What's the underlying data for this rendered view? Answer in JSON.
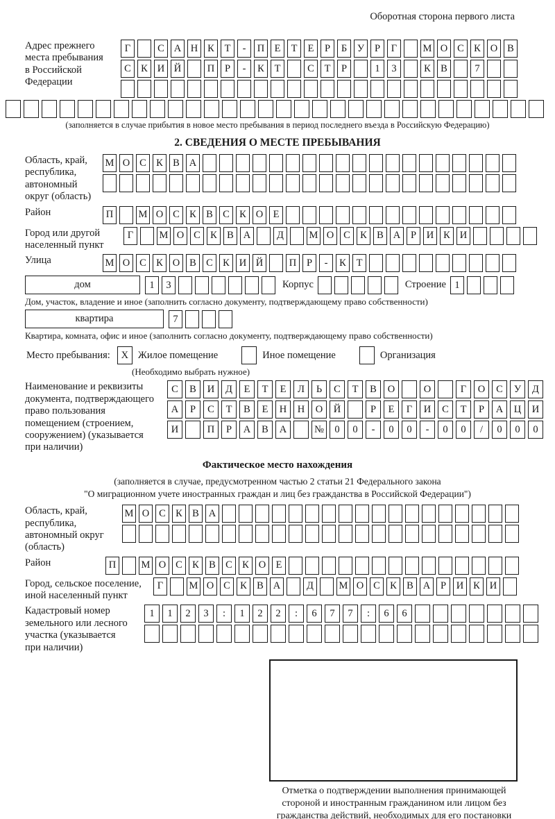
{
  "header": {
    "note": "Оборотная сторона первого листа"
  },
  "prev_address": {
    "label": "Адрес прежнего\nместа пребывания\nв Российской\nФедерации",
    "rows": [
      {
        "len": 24,
        "text": "Г САНКТ-ПЕТЕРБУРГ МОСКОВ"
      },
      {
        "len": 24,
        "text": "СКИЙ ПР-КТ СТР 13 КВ 7"
      },
      {
        "len": 24,
        "text": ""
      }
    ],
    "extra_row": {
      "len": 30,
      "text": ""
    },
    "caption": "(заполняется в случае прибытия в новое место пребывания в период последнего въезда в Российскую Федерацию)"
  },
  "section2": {
    "heading": "2. СВЕДЕНИЯ О МЕСТЕ ПРЕБЫВАНИЯ",
    "oblast": {
      "label": "Область, край,\nреспублика,\nавтономный\nокруг (область)",
      "rows": [
        {
          "len": 25,
          "text": "МОСКВА"
        },
        {
          "len": 25,
          "text": ""
        }
      ]
    },
    "raion": {
      "label": "Район",
      "row": {
        "len": 25,
        "text": "П МОСКВСКОЕ"
      }
    },
    "gorod": {
      "label": "Город или другой\nнаселенный пункт",
      "row": {
        "len": 25,
        "text": "Г МОСКВА Д МОСКВАРИКИ"
      }
    },
    "ulitsa": {
      "label": "Улица",
      "row": {
        "len": 25,
        "text": "МОСКОВСКИЙ ПР-КТ"
      }
    },
    "dom": {
      "box_label": "дом",
      "cells": {
        "len": 8,
        "text": "13"
      },
      "korpus_label": "Корпус",
      "korpus_cells": {
        "len": 5,
        "text": ""
      },
      "stroenie_label": "Строение",
      "stroenie_cells": {
        "len": 4,
        "text": "1"
      }
    },
    "dom_caption": "Дом, участок, владение и иное (заполнить согласно документу, подтверждающему право собственности)",
    "kvartira": {
      "box_label": "квартира",
      "cells": {
        "len": 4,
        "text": "7"
      }
    },
    "kvartira_caption": "Квартира, комната, офис и иное (заполнить согласно документу, подтверждающему право собственности)",
    "mesto": {
      "label": "Место пребывания:",
      "options": [
        {
          "label": "Жилое помещение",
          "mark": "X"
        },
        {
          "label": "Иное помещение",
          "mark": ""
        },
        {
          "label": "Организация",
          "mark": ""
        }
      ],
      "note": "(Необходимо выбрать нужное)"
    },
    "document": {
      "label": "Наименование и реквизиты\nдокумента, подтверждающего\nправо пользования\nпомещением (строением,\nсооружением) (указывается\nпри наличии)",
      "rows": [
        {
          "len": 21,
          "text": "СВИДЕТЕЛЬСТВО О ГОСУД"
        },
        {
          "len": 21,
          "text": "АРСТВЕННОЙ РЕГИСТРАЦИ"
        },
        {
          "len": 21,
          "text": "И ПРАВА №00-00-00/000"
        }
      ]
    }
  },
  "fact": {
    "heading": "Фактическое место нахождения",
    "note_line1": "(заполняется в случае, предусмотренном частью 2 статьи 21 Федерального закона",
    "note_line2": "\"О миграционном учете иностранных граждан и лиц без гражданства в Российской Федерации\")",
    "oblast": {
      "label": "Область, край,\nреспублика,\nавтономный округ\n(область)",
      "rows": [
        {
          "len": 24,
          "text": "МОСКВА"
        },
        {
          "len": 24,
          "text": ""
        }
      ]
    },
    "raion": {
      "label": "Район",
      "row": {
        "len": 25,
        "text": "П МОСКВСКОЕ"
      }
    },
    "gorod": {
      "label": "Город, сельское поселение,\nиной населенный пункт",
      "row": {
        "len": 22,
        "text": "Г МОСКВА Д МОСКВАРИКИ"
      }
    },
    "kadastr": {
      "label": "Кадастровый номер\nземельного или лесного\nучастка (указывается\nпри наличии)",
      "rows": [
        {
          "len": 22,
          "text": "1123:122:677:66"
        },
        {
          "len": 22,
          "text": ""
        }
      ]
    }
  },
  "stamp": {
    "caption": "Отметка о подтверждении выполнения принимающей\nстороной и иностранным гражданином или лицом без\nгражданства действий, необходимых для его постановки\nна учет по месту пребывания"
  },
  "colors": {
    "ink": "#1a1a1a",
    "background": "#ffffff"
  }
}
